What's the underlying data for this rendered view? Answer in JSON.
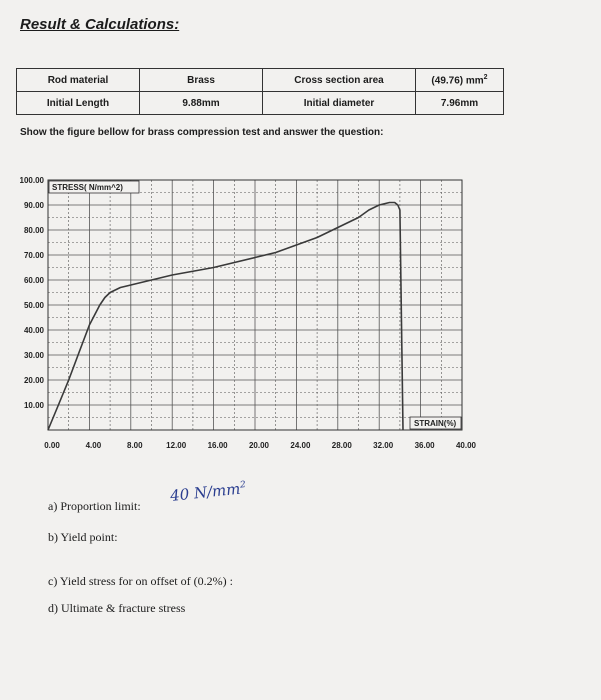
{
  "heading": "Result & Calculations:",
  "table": {
    "row1": {
      "label1": "Rod material",
      "value1": "Brass",
      "label2": "Cross section area",
      "value2": "(49.76) mm",
      "value2_sup": "2"
    },
    "row2": {
      "label1": "Initial Length",
      "value1": "9.88mm",
      "label2": "Initial diameter",
      "value2": "7.96mm"
    }
  },
  "intro_text": "Show the figure bellow for brass compression test and answer the question:",
  "chart_data": {
    "type": "line",
    "xlabel": "STRAIN(%)",
    "ylabel": "STRESS( N/mm^2)",
    "x_ticks": [
      "0.00",
      "4.00",
      "8.00",
      "12.00",
      "16.00",
      "20.00",
      "24.00",
      "28.00",
      "32.00",
      "36.00",
      "40.00"
    ],
    "y_ticks": [
      "10.00",
      "20.00",
      "30.00",
      "40.00",
      "50.00",
      "60.00",
      "70.00",
      "80.00",
      "90.00",
      "100.00"
    ],
    "xlim": [
      0,
      40
    ],
    "ylim": [
      0,
      100
    ],
    "grid": true,
    "series": [
      {
        "x": [
          0,
          1,
          2,
          3,
          4,
          5,
          5.5,
          6,
          7,
          8,
          12,
          16,
          20,
          22,
          24,
          26,
          28,
          30,
          31,
          32,
          33,
          33.5,
          33.8,
          34,
          34.3
        ],
        "y": [
          0,
          10,
          20,
          31,
          42,
          50,
          53,
          55,
          57,
          58,
          62,
          65,
          69,
          71,
          74,
          77,
          81,
          85,
          88,
          90,
          91,
          91,
          90,
          88,
          0
        ]
      }
    ]
  },
  "questions": {
    "a": "a)  Proportion limit:",
    "b": "b)  Yield point:",
    "c": "c)  Yield stress for on offset of (0.2%) :",
    "d": "d)  Ultimate & fracture stress"
  },
  "answer_a": {
    "text": "40 N/mm",
    "sup": "2"
  }
}
